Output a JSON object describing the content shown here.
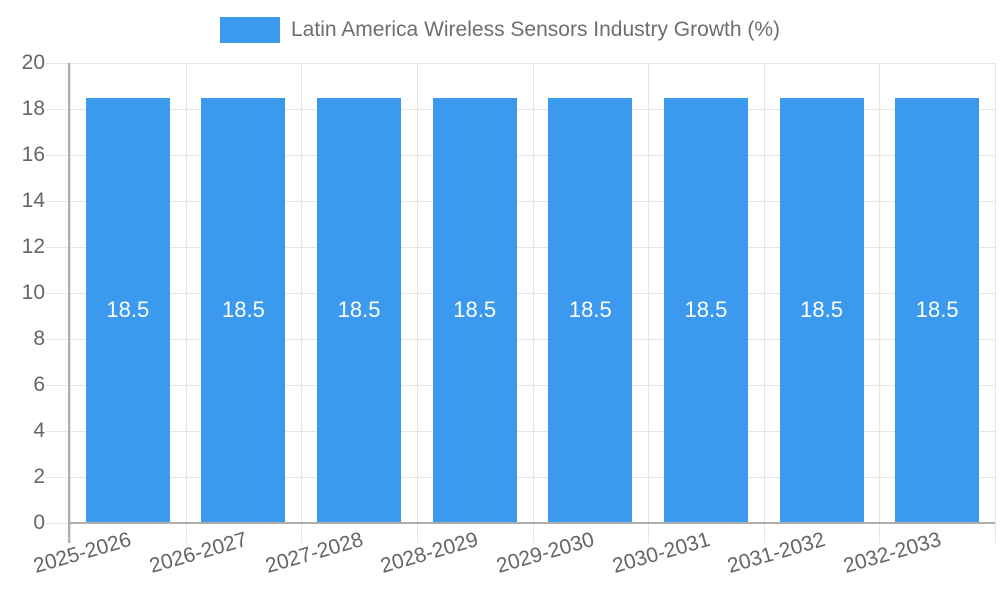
{
  "legend": {
    "label": "Latin America Wireless Sensors Industry Growth (%)"
  },
  "colors": {
    "bar": "#3B99EE",
    "grid": "#E5E5E5",
    "axis": "#ADADAD",
    "tick_label": "#666666",
    "legend_label": "#6E6E6E",
    "bar_label": "#FFFFFF",
    "background": "#FFFFFF"
  },
  "chart_data": {
    "type": "bar",
    "title": "Latin America Wireless Sensors Industry Growth (%)",
    "categories": [
      "2025-2026",
      "2026-2027",
      "2027-2028",
      "2028-2029",
      "2029-2030",
      "2030-2031",
      "2031-2032",
      "2032-2033"
    ],
    "values": [
      18.5,
      18.5,
      18.5,
      18.5,
      18.5,
      18.5,
      18.5,
      18.5
    ],
    "bar_labels": [
      "18.5",
      "18.5",
      "18.5",
      "18.5",
      "18.5",
      "18.5",
      "18.5",
      "18.5"
    ],
    "xlabel": "",
    "ylabel": "",
    "ylim": [
      0,
      20
    ],
    "ytick_step": 2,
    "grid": true,
    "legend_position": "top",
    "x_tick_rotation_deg": -16
  }
}
